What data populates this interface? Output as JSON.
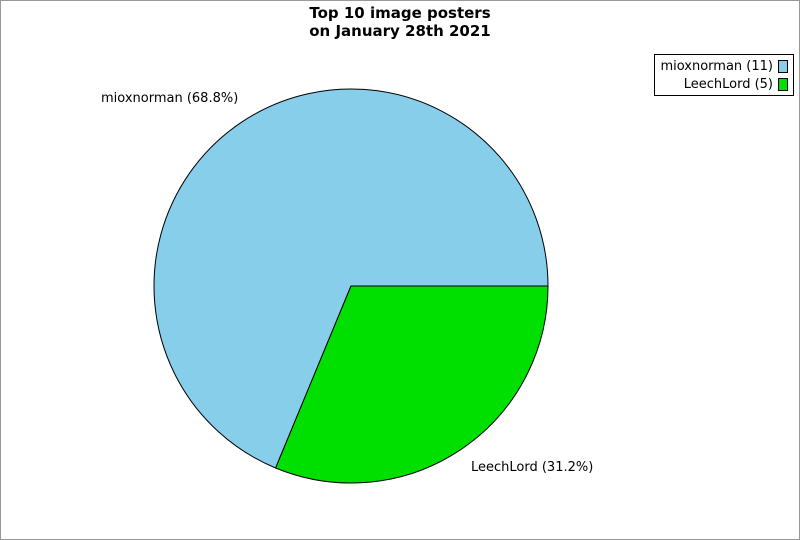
{
  "chart_data": {
    "type": "pie",
    "title": "Top 10 image posters on January 28th 2021",
    "title_line1": "Top 10 image posters",
    "title_line2": "on January 28th 2021",
    "legend_position": "top-right",
    "start_angle_deg": 0,
    "direction": "counterclockwise",
    "outline_color": "#000000",
    "background_color": "#ffffff",
    "frame_border_color": "#999999",
    "slices": [
      {
        "name": "mioxnorman",
        "value": 11,
        "percent": 68.8,
        "color": "#87CEEB",
        "label": "mioxnorman (68.8%)",
        "legend_label": "mioxnorman (11)"
      },
      {
        "name": "LeechLord",
        "value": 5,
        "percent": 31.2,
        "color": "#00E000",
        "label": "LeechLord (31.2%)",
        "legend_label": "LeechLord (5)"
      }
    ]
  }
}
